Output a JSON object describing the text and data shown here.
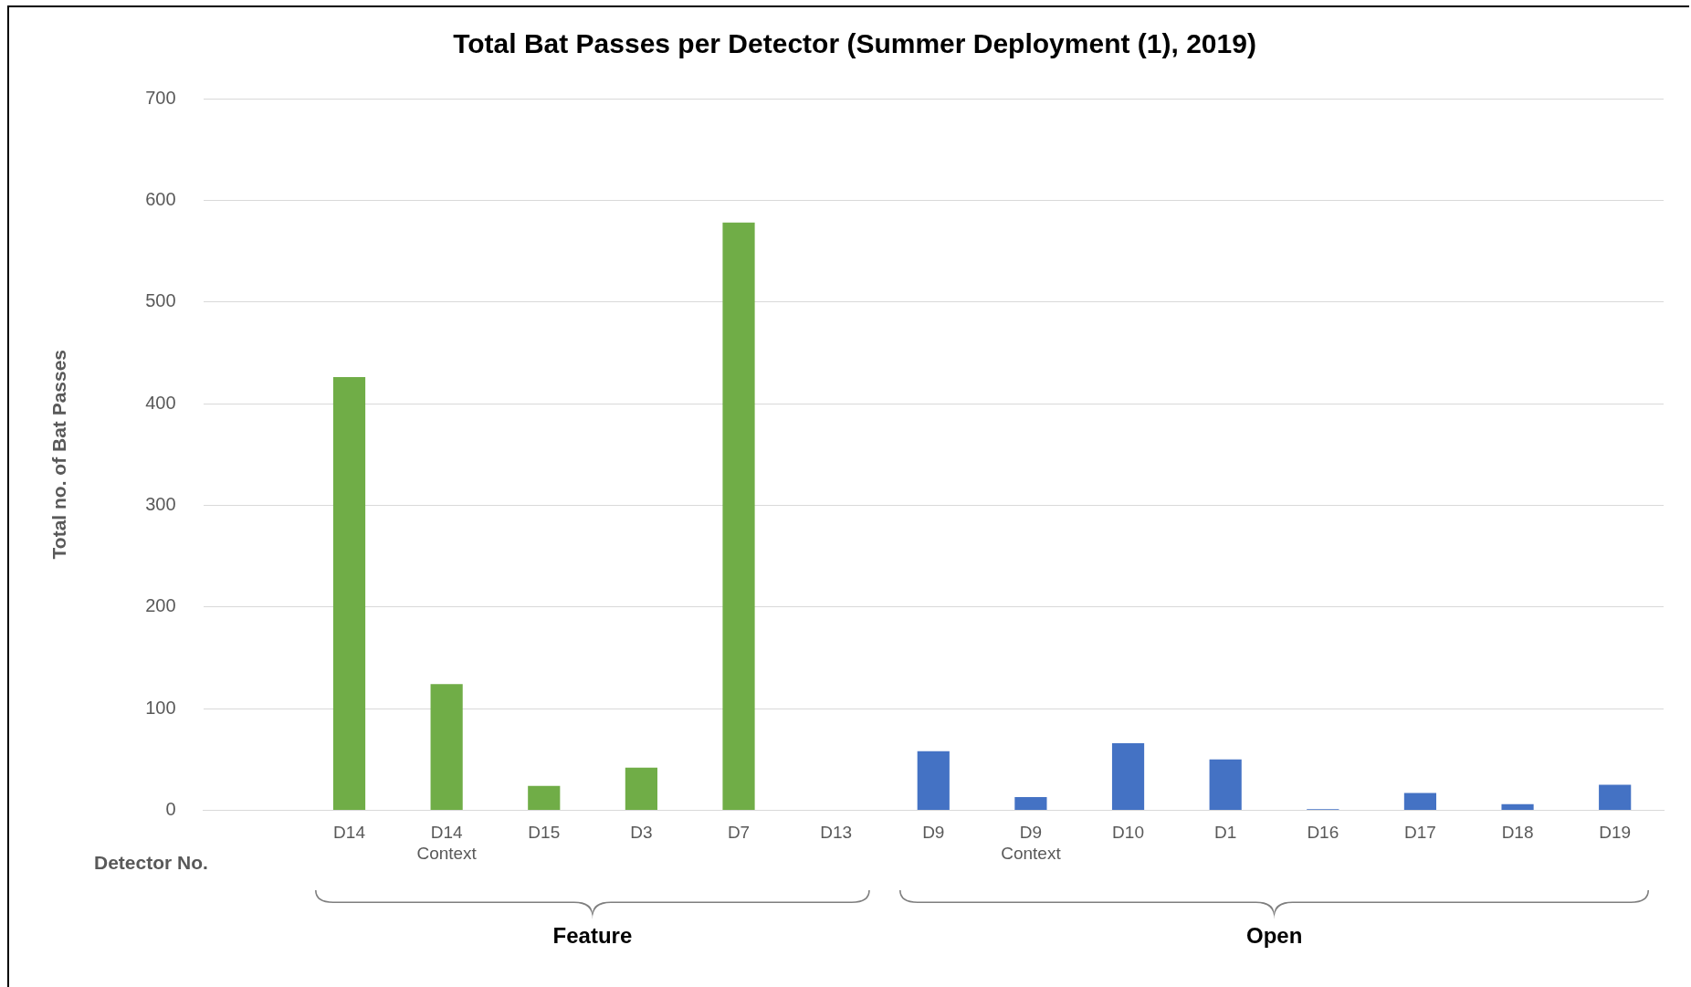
{
  "chart_data": {
    "type": "bar",
    "title": "Total Bat Passes per Detector (Summer Deployment (1), 2019)",
    "xlabel": "Detector No.",
    "ylabel": "Total no. of Bat Passes",
    "categories": [
      null,
      "D14",
      "D14\nContext",
      "D15",
      "D3",
      "D7",
      "D13",
      "D9",
      "D9\nContext",
      "D10",
      "D1",
      "D16",
      "D17",
      "D18",
      "D19"
    ],
    "values": [
      null,
      426,
      124,
      24,
      42,
      578,
      0,
      58,
      13,
      66,
      50,
      1,
      17,
      6,
      25
    ],
    "colors": [
      null,
      "#70ad47",
      "#70ad47",
      "#70ad47",
      "#70ad47",
      "#70ad47",
      "#70ad47",
      "#4472c4",
      "#4472c4",
      "#4472c4",
      "#4472c4",
      "#4472c4",
      "#4472c4",
      "#4472c4",
      "#4472c4"
    ],
    "ylim": [
      0,
      700
    ],
    "yticks": [
      0,
      100,
      200,
      300,
      400,
      500,
      600,
      700
    ],
    "grid": "y",
    "annotations": [
      "Feature",
      "Open"
    ]
  }
}
